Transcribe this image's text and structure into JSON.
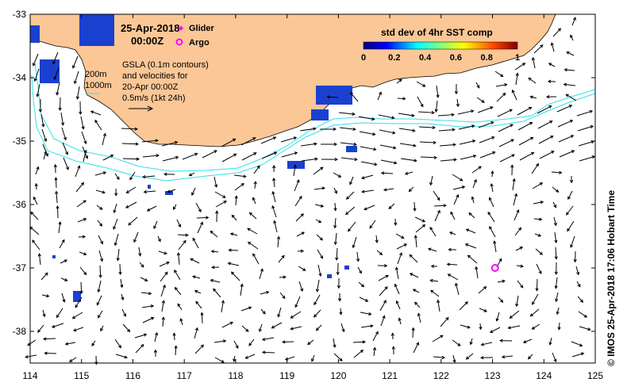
{
  "map": {
    "date_line1": "25-Apr-2018",
    "date_line2": "00:00Z",
    "legend_glider": "Glider",
    "legend_argo": "Argo",
    "colorbar_title": "std dev of 4hr SST comp",
    "colorbar_ticks": [
      "0",
      "0.2",
      "0.4",
      "0.6",
      "0.8",
      "1"
    ],
    "contour_200": "200m",
    "contour_1000": "1000m",
    "gsla_lines": [
      "GSLA (0.1m contours)",
      "and velocities for",
      "20-Apr 00:00Z",
      "0.5m/s (1kt 24h)"
    ],
    "credit": "©  IMOS 25-Apr-2018 17:06 Hobart Time",
    "lon_ticks": [
      "114",
      "115",
      "116",
      "117",
      "118",
      "119",
      "120",
      "121",
      "122",
      "123",
      "124",
      "125"
    ],
    "lat_ticks": [
      "-33",
      "-34",
      "-35",
      "-36",
      "-37",
      "-38"
    ],
    "argo_float": {
      "lon": 123.05,
      "lat": -37.0
    },
    "colors": {
      "land": "#fbc796",
      "contour": "#33e0e8",
      "glider": "#ff00ff",
      "argo": "#ff00ff",
      "sst_patch": "#1a40d0"
    }
  }
}
